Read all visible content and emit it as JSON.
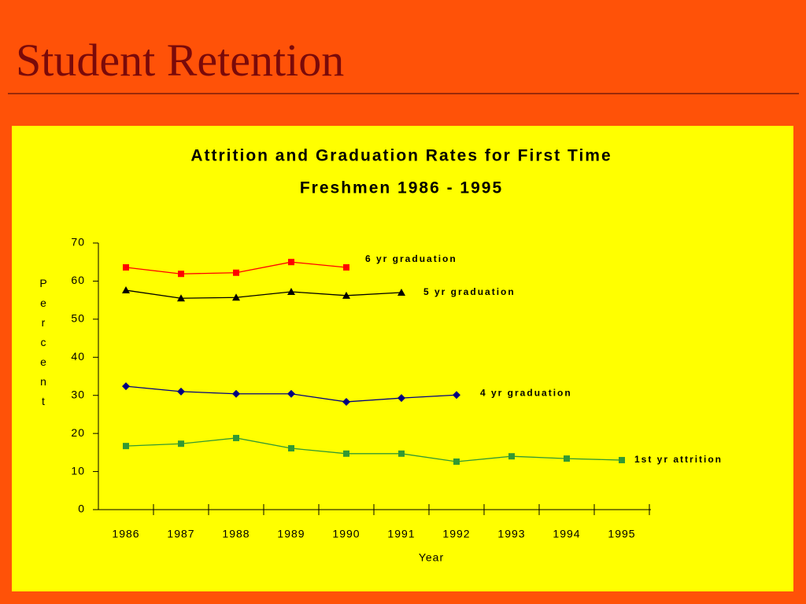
{
  "slide_title": "Student Retention",
  "chart_data": {
    "type": "line",
    "title": [
      "Attrition and Graduation Rates for First Time",
      "Freshmen 1986 - 1995"
    ],
    "xlabel": "Year",
    "ylabel": "Percent",
    "categories": [
      "1986",
      "1987",
      "1988",
      "1989",
      "1990",
      "1991",
      "1992",
      "1993",
      "1994",
      "1995"
    ],
    "ylim": [
      0,
      70
    ],
    "yticks": [
      0,
      10,
      20,
      30,
      40,
      50,
      60,
      70
    ],
    "series": [
      {
        "name": "6 yr graduation",
        "color": "#ff0000",
        "marker": "square",
        "values": [
          63.6,
          61.9,
          62.2,
          65.0,
          63.6,
          null,
          null,
          null,
          null,
          null
        ]
      },
      {
        "name": "5 yr graduation",
        "color": "#000000",
        "marker": "triangle",
        "values": [
          57.6,
          55.5,
          55.7,
          57.2,
          56.2,
          57.0,
          null,
          null,
          null,
          null
        ]
      },
      {
        "name": "4 yr graduation",
        "color": "#000080",
        "marker": "diamond",
        "values": [
          32.4,
          31.0,
          30.4,
          30.4,
          28.3,
          29.3,
          30.1,
          null,
          null,
          null
        ]
      },
      {
        "name": "1st yr attrition",
        "color": "#339933",
        "marker": "square",
        "values": [
          16.7,
          17.3,
          18.8,
          16.1,
          14.7,
          14.7,
          12.6,
          14.0,
          13.4,
          13.0
        ]
      }
    ]
  }
}
